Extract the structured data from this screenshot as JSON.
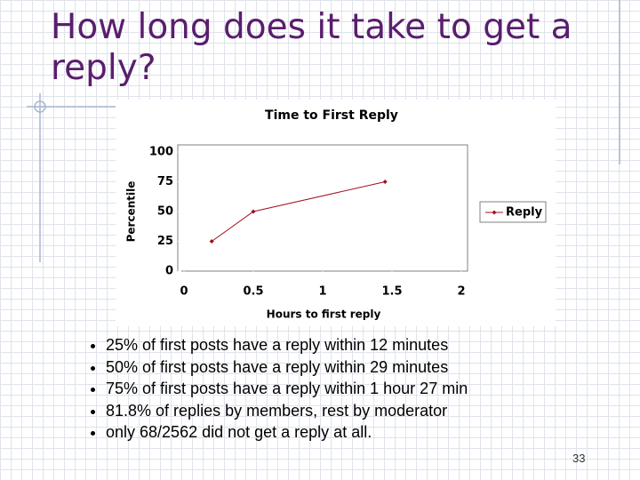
{
  "title": "How long does it take to get a reply?",
  "chart_data": {
    "type": "line",
    "title": "Time to First Reply",
    "x_label": "Hours to first reply",
    "y_label": "Percentile",
    "x": [
      0.2,
      0.5,
      1.45
    ],
    "series": [
      {
        "name": "Reply",
        "color": "#a01020",
        "values": [
          25,
          50,
          75
        ]
      }
    ],
    "xlim": [
      0,
      2
    ],
    "xticks": [
      0,
      0.5,
      1,
      1.5,
      2
    ],
    "ylim": [
      0,
      100
    ],
    "yticks": [
      0,
      25,
      50,
      75,
      100
    ],
    "grid": false,
    "legend": "right"
  },
  "bullets": [
    "25% of first posts have a reply within 12 minutes",
    "50% of first posts have a reply within 29 minutes",
    "75% of first posts have a reply within 1 hour 27 min",
    "81.8% of replies by members, rest by moderator",
    "only 68/2562 did not get a reply at all."
  ],
  "page_number": "33"
}
